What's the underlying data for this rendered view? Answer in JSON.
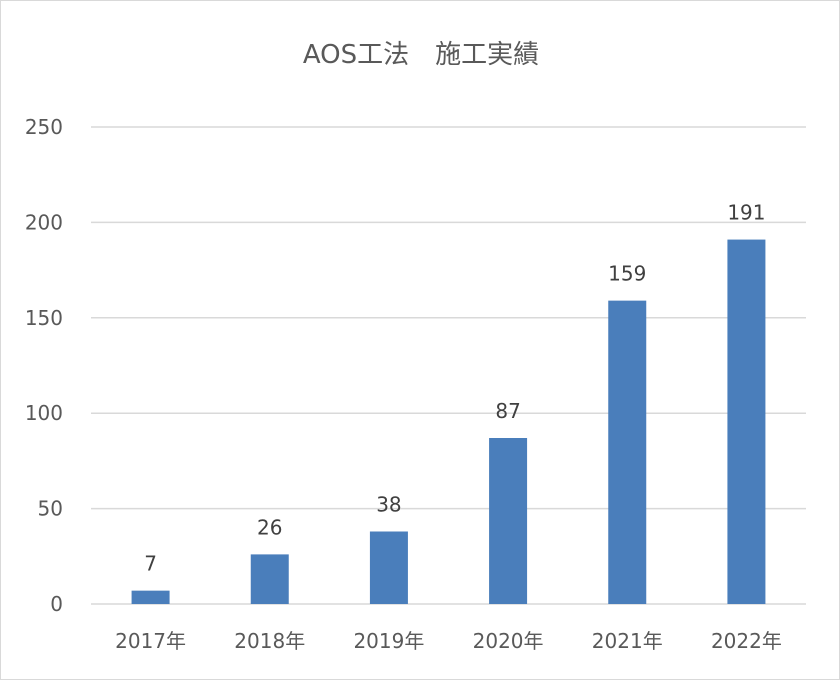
{
  "chart_data": {
    "type": "bar",
    "title": "AOS工法　施工実績",
    "categories": [
      "2017年",
      "2018年",
      "2019年",
      "2020年",
      "2021年",
      "2022年"
    ],
    "values": [
      7,
      26,
      38,
      87,
      159,
      191
    ],
    "ylim": [
      0,
      250
    ],
    "yticks": [
      "0",
      "50",
      "100",
      "150",
      "200",
      "250"
    ],
    "ytick_values": [
      0,
      50,
      100,
      150,
      200,
      250
    ],
    "bar_color": "#4a7ebb",
    "grid": true,
    "legend": "none",
    "data_labels": true
  }
}
